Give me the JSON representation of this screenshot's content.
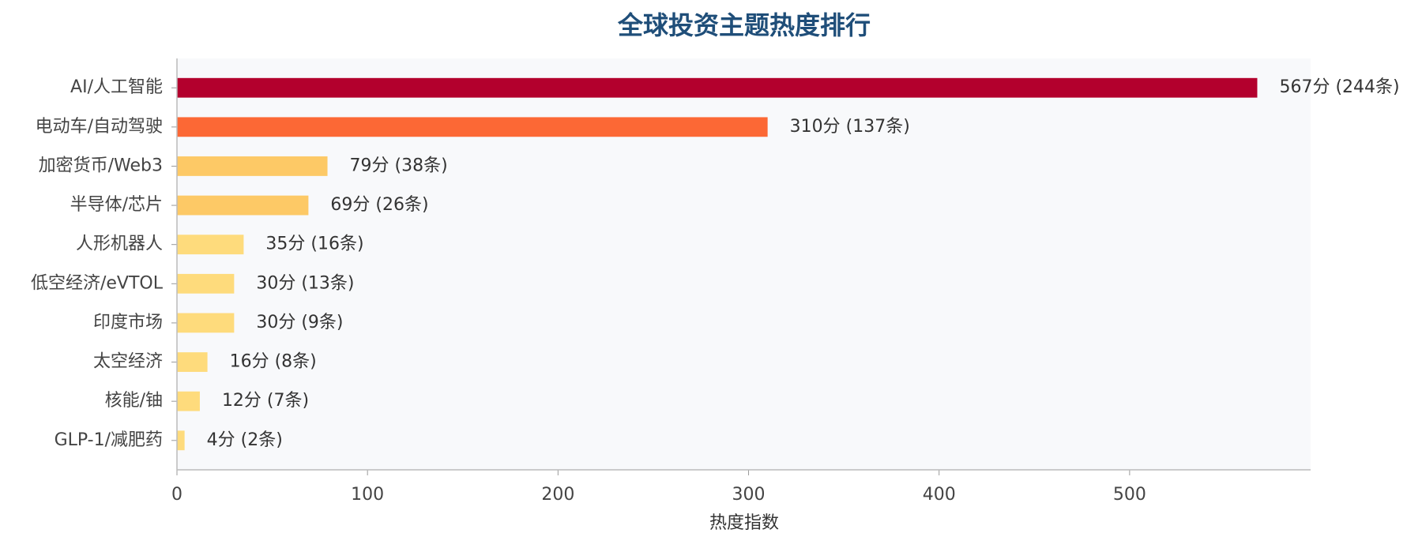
{
  "chart_data": {
    "type": "bar",
    "orientation": "horizontal",
    "title": "全球投资主题热度排行",
    "x_label": "热度指数",
    "categories": [
      "AI/人工智能",
      "电动车/自动驾驶",
      "加密货币/Web3",
      "半导体/芯片",
      "人形机器人",
      "低空经济/eVTOL",
      "印度市场",
      "太空经济",
      "核能/铀",
      "GLP-1/减肥药"
    ],
    "values": [
      567,
      310,
      79,
      69,
      35,
      30,
      30,
      16,
      12,
      4
    ],
    "value_labels": [
      "567分 (244条)",
      "310分 (137条)",
      "79分 (38条)",
      "69分 (26条)",
      "35分 (16条)",
      "30分 (13条)",
      "30分 (9条)",
      "16分 (8条)",
      "12分 (7条)",
      "4分 (2条)"
    ],
    "colors": [
      "#b3002d",
      "#fc6835",
      "#fdc966",
      "#fdc966",
      "#fedb7c",
      "#fedb7c",
      "#fedb7c",
      "#fedb7c",
      "#fedb7c",
      "#fedb7c"
    ],
    "xlim": [
      0,
      595
    ],
    "xticks": [
      0,
      100,
      200,
      300,
      400,
      500
    ]
  }
}
